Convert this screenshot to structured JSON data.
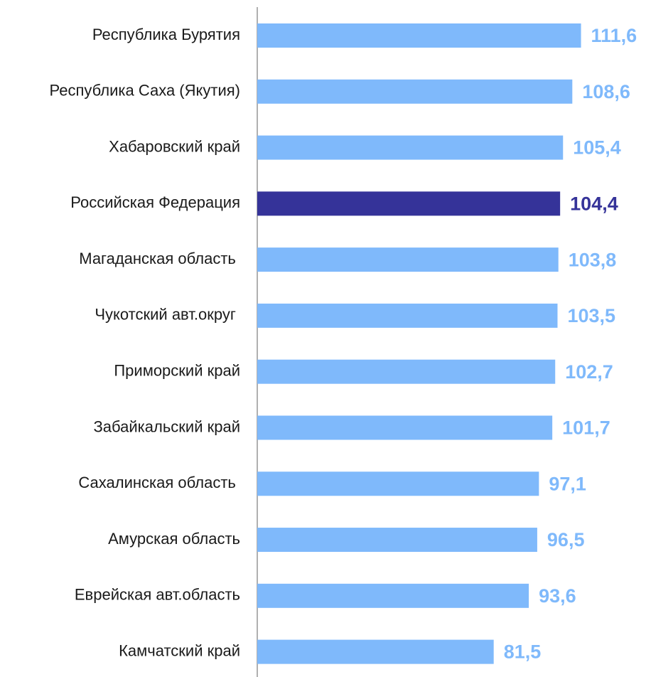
{
  "chart_data": {
    "type": "barh",
    "categories": [
      "Республика Бурятия",
      "Республика Саха (Якутия)",
      "Хабаровский край",
      "Российская Федерация",
      "Магаданская область ",
      "Чукотский авт.округ ",
      "Приморский край",
      "Забайкальский край",
      "Сахалинская область ",
      "Амурская область",
      "Еврейская авт.область",
      "Камчатский край"
    ],
    "values": [
      111.6,
      108.6,
      105.4,
      104.4,
      103.8,
      103.5,
      102.7,
      101.7,
      97.1,
      96.5,
      93.6,
      81.5
    ],
    "value_labels": [
      "111,6",
      "108,6",
      "105,4",
      "104,4",
      "103,8",
      "103,5",
      "102,7",
      "101,7",
      "97,1",
      "96,5",
      "93,6",
      "81,5"
    ],
    "colors": [
      "#7fb9fb",
      "#7fb9fb",
      "#7fb9fb",
      "#353399",
      "#7fb9fb",
      "#7fb9fb",
      "#7fb9fb",
      "#7fb9fb",
      "#7fb9fb",
      "#7fb9fb",
      "#7fb9fb",
      "#7fb9fb"
    ],
    "xlim": [
      0,
      134
    ]
  }
}
